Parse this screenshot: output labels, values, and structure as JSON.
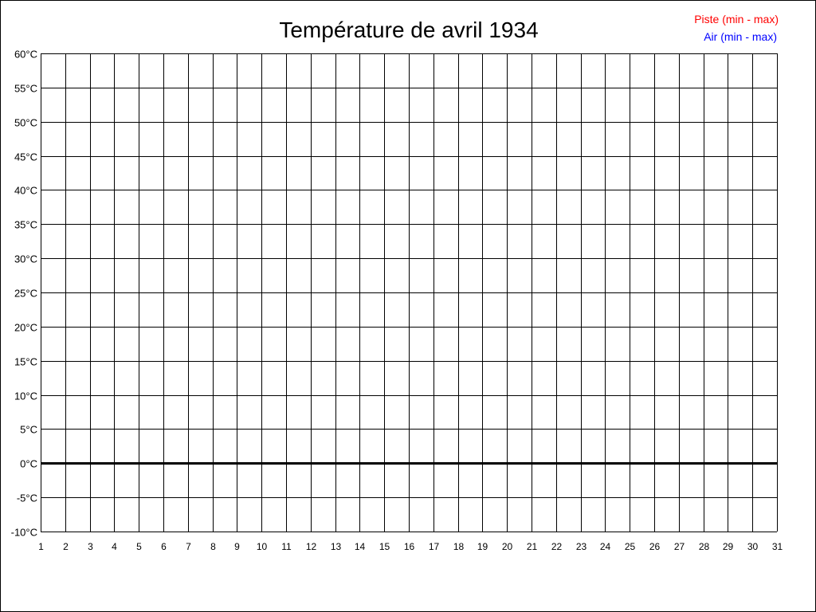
{
  "chart_data": {
    "type": "line",
    "title": "Température de avril 1934",
    "xlabel": "",
    "ylabel": "",
    "x_ticks": [
      "1",
      "2",
      "3",
      "4",
      "5",
      "6",
      "7",
      "8",
      "9",
      "10",
      "11",
      "12",
      "13",
      "14",
      "15",
      "16",
      "17",
      "18",
      "19",
      "20",
      "21",
      "22",
      "23",
      "24",
      "25",
      "26",
      "27",
      "28",
      "29",
      "30",
      "31"
    ],
    "y_ticks": [
      "-10°C",
      "-5°C",
      "0°C",
      "5°C",
      "10°C",
      "15°C",
      "20°C",
      "25°C",
      "30°C",
      "35°C",
      "40°C",
      "45°C",
      "50°C",
      "55°C",
      "60°C"
    ],
    "xlim": [
      1,
      31
    ],
    "ylim": [
      -10,
      60
    ],
    "y_step": 5,
    "grid": true,
    "legend_position": "top-right",
    "series": [
      {
        "name": "Piste (min - max)",
        "color": "#ff0000",
        "values": []
      },
      {
        "name": "Air (min - max)",
        "color": "#0000ff",
        "values": []
      }
    ]
  }
}
